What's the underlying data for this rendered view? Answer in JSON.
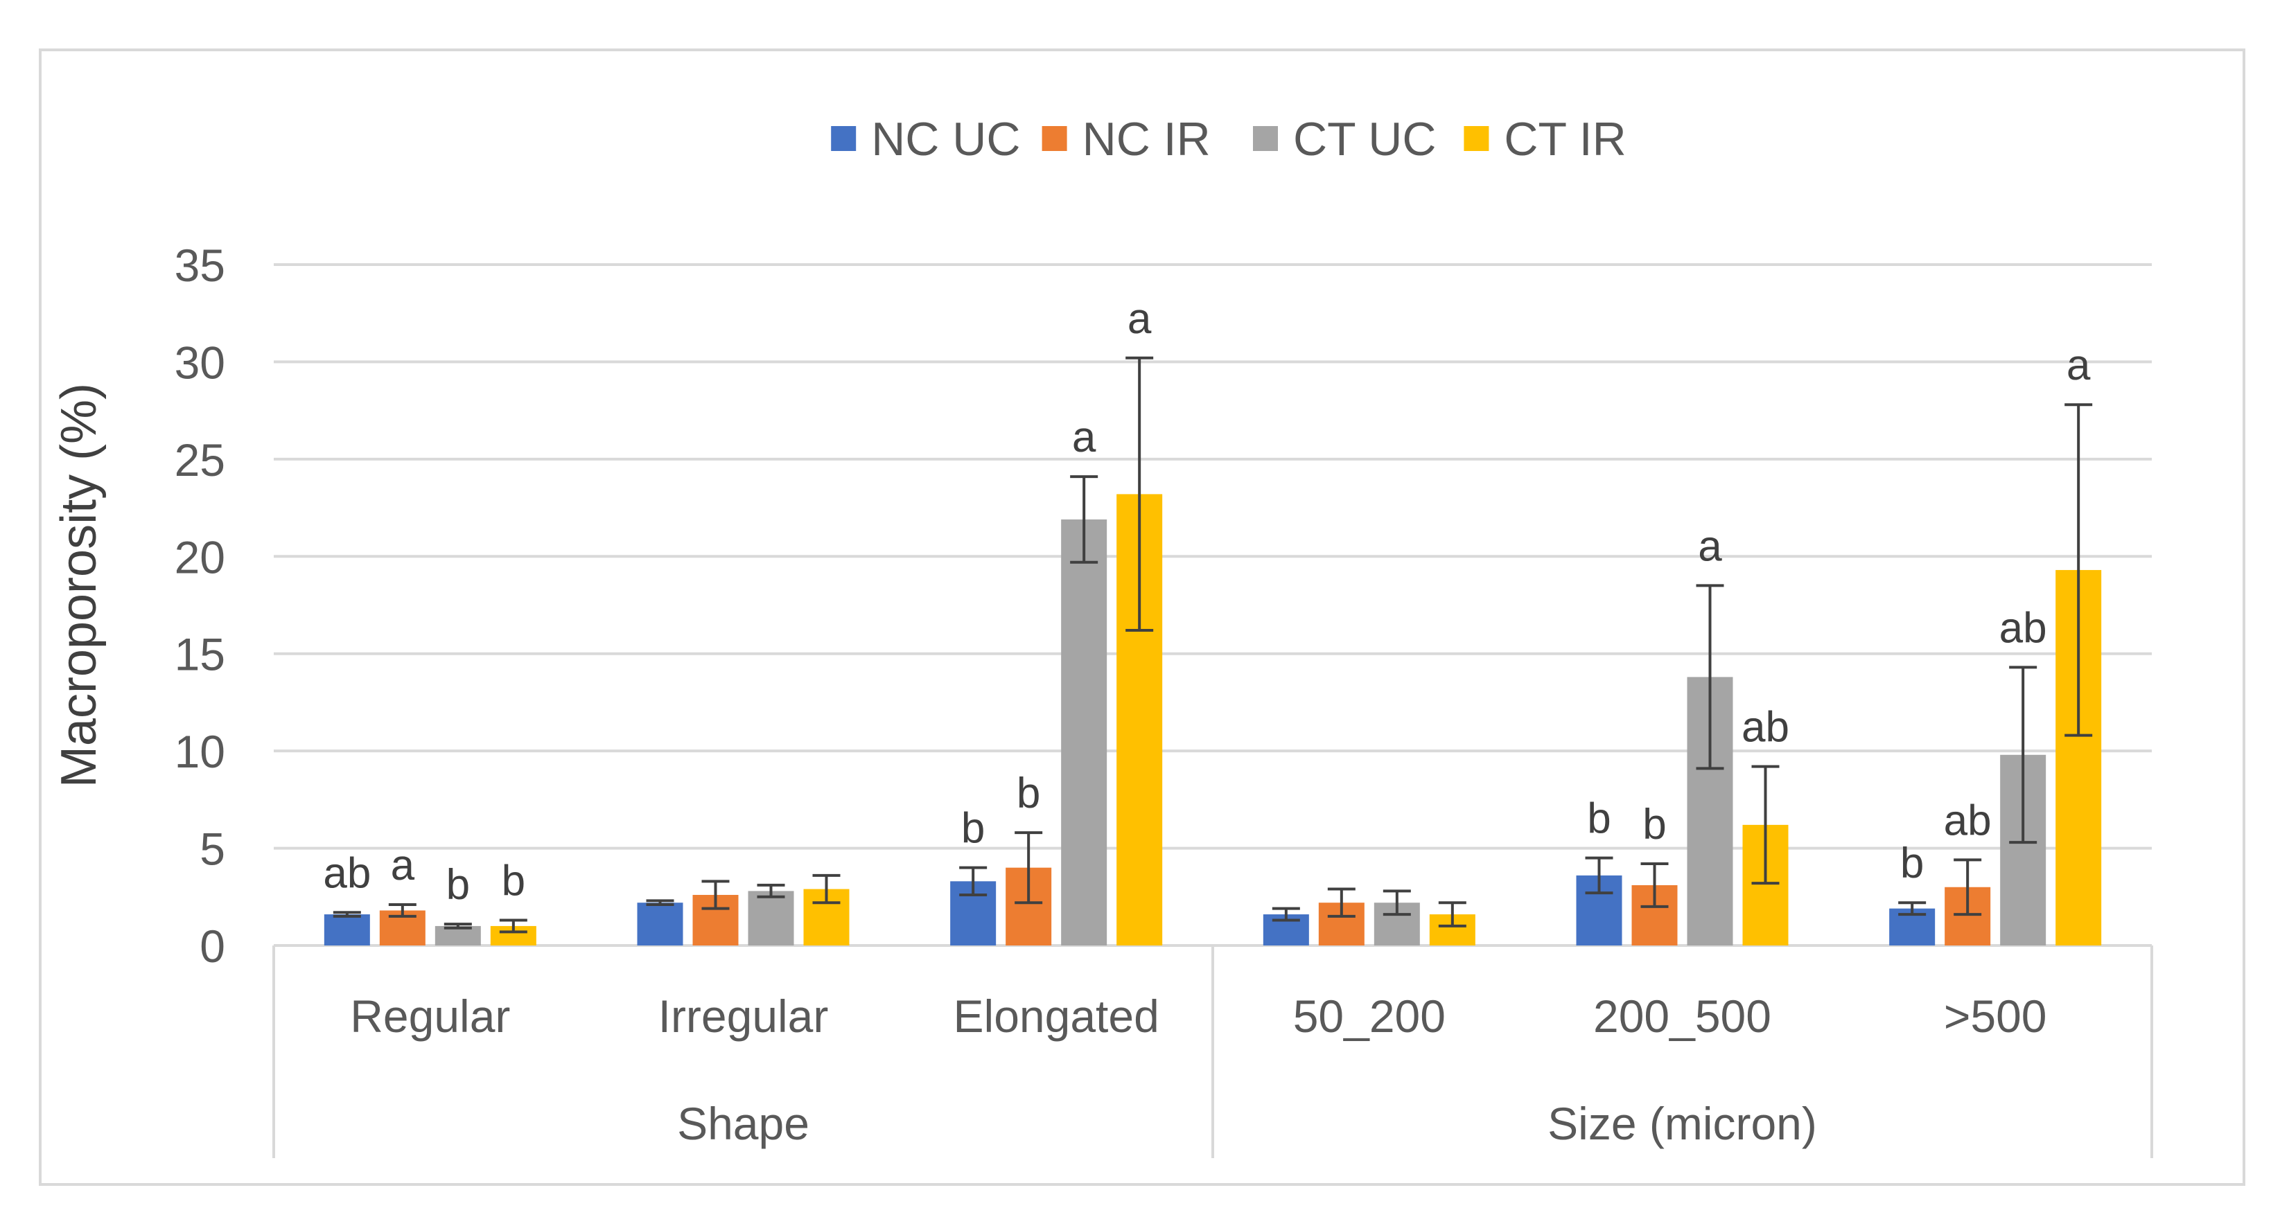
{
  "chart_data": {
    "type": "bar",
    "title": "",
    "ylabel": "Macroporosity (%)",
    "ylim": [
      0,
      35
    ],
    "yticks": [
      0,
      5,
      10,
      15,
      20,
      25,
      30,
      35
    ],
    "grid": true,
    "legend_position": "top-center",
    "groups": [
      {
        "label": "Shape",
        "categories": [
          "Regular",
          "Irregular",
          "Elongated"
        ]
      },
      {
        "label": "Size (micron)",
        "categories": [
          "50_200",
          "200_500",
          ">500"
        ]
      }
    ],
    "categories": [
      "Regular",
      "Irregular",
      "Elongated",
      "50_200",
      "200_500",
      ">500"
    ],
    "series": [
      {
        "name": "NC UC",
        "color": "#4472C4",
        "values": [
          1.6,
          2.2,
          3.3,
          1.6,
          3.6,
          1.9
        ],
        "errors": [
          0.1,
          0.1,
          0.7,
          0.3,
          0.9,
          0.3
        ],
        "letters": [
          "ab",
          "",
          "b",
          "",
          "b",
          "b"
        ]
      },
      {
        "name": "NC IR",
        "color": "#ED7D31",
        "values": [
          1.8,
          2.6,
          4.0,
          2.2,
          3.1,
          3.0
        ],
        "errors": [
          0.3,
          0.7,
          1.8,
          0.7,
          1.1,
          1.4
        ],
        "letters": [
          "a",
          "",
          "b",
          "",
          "b",
          "ab"
        ]
      },
      {
        "name": "CT UC",
        "color": "#A5A5A5",
        "values": [
          1.0,
          2.8,
          21.9,
          2.2,
          13.8,
          9.8
        ],
        "errors": [
          0.1,
          0.3,
          2.2,
          0.6,
          4.7,
          4.5
        ],
        "letters": [
          "b",
          "",
          "a",
          "",
          "a",
          "ab"
        ]
      },
      {
        "name": "CT IR",
        "color": "#FFC000",
        "values": [
          1.0,
          2.9,
          23.2,
          1.6,
          6.2,
          19.3
        ],
        "errors": [
          0.3,
          0.7,
          7.0,
          0.6,
          3.0,
          8.5
        ],
        "letters": [
          "b",
          "",
          "a",
          "",
          "ab",
          "a"
        ]
      }
    ]
  }
}
